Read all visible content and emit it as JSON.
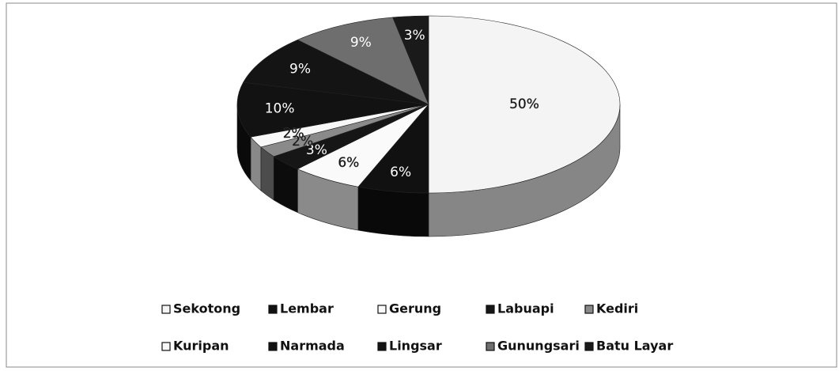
{
  "chart_data": {
    "type": "pie",
    "categories": [
      "Sekotong",
      "Lembar",
      "Gerung",
      "Labuapi",
      "Kediri",
      "Kuripan",
      "Narmada",
      "Lingsar",
      "Gunungsari",
      "Batu Layar"
    ],
    "values": [
      50,
      6,
      6,
      3,
      2,
      2,
      10,
      9,
      9,
      3
    ],
    "value_labels": [
      "50%",
      "6%",
      "6%",
      "3%",
      "2%",
      "2%",
      "10%",
      "9%",
      "9%",
      "3%"
    ],
    "colors": [
      "#f4f4f4",
      "#111111",
      "#fafafa",
      "#161616",
      "#8a8a8a",
      "#f8f8f8",
      "#121212",
      "#141414",
      "#6e6e6e",
      "#1a1a1a"
    ]
  }
}
